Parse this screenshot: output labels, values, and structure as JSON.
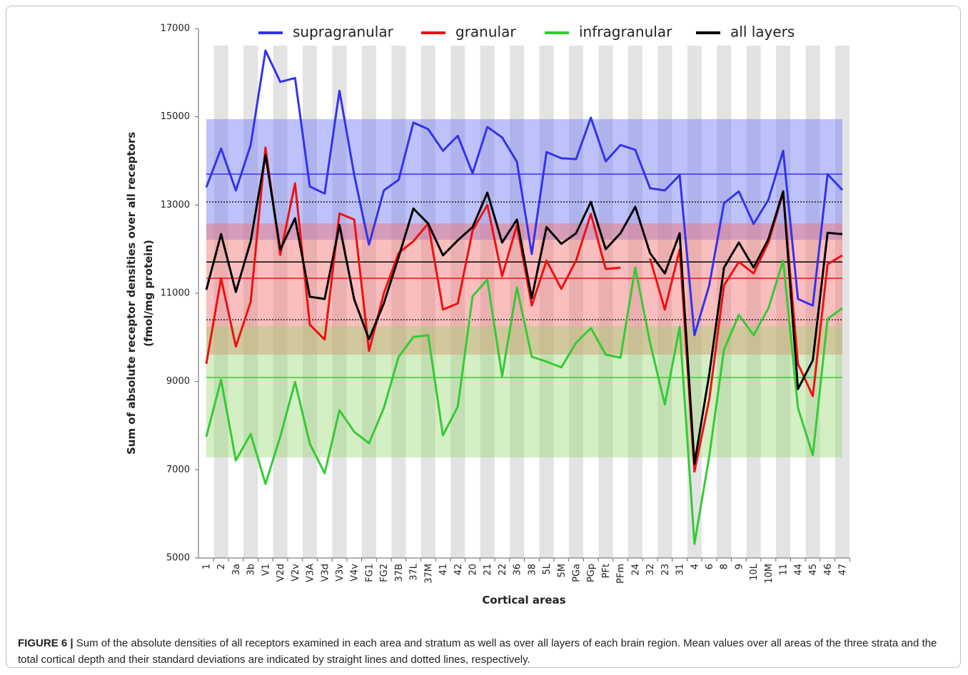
{
  "chart_data": {
    "type": "line",
    "ylabel_lines": [
      "Sum of absolute receptor densities over all receptors",
      "(fmol/mg protein)"
    ],
    "xlabel": "Cortical areas",
    "figure_label": "FIGURE 6 |",
    "caption": "Sum of the absolute densities of all receptors examined in each area and stratum as well as over all layers of each brain region. Mean values over all areas of the three strata and the total cortical depth and their standard deviations are indicated by straight lines and dotted lines, respectively.",
    "categories": [
      "1",
      "2",
      "3a",
      "3b",
      "V1",
      "V2d",
      "V2v",
      "V3A",
      "V3d",
      "V3v",
      "V4v",
      "FG1",
      "FG2",
      "37B",
      "37L",
      "37M",
      "41",
      "42",
      "20",
      "21",
      "22",
      "36",
      "38",
      "5L",
      "5M",
      "PGa",
      "PGp",
      "PFt",
      "PFm",
      "24",
      "32",
      "23",
      "31",
      "4",
      "6",
      "8",
      "9",
      "10L",
      "10M",
      "11",
      "44",
      "45",
      "46",
      "47"
    ],
    "ylim": [
      5000,
      17000
    ],
    "yticks": [
      5000,
      7000,
      9000,
      11000,
      13000,
      15000,
      17000
    ],
    "series": [
      {
        "name": "supragranular",
        "color": "#3333ee",
        "band_color": "rgba(110,120,245,0.45)",
        "sd_style": "band",
        "mean": 13700,
        "sd_range": [
          12213,
          14946
        ],
        "values": [
          13400,
          14280,
          13330,
          14360,
          16500,
          15790,
          15880,
          13420,
          13260,
          15590,
          13680,
          12100,
          13330,
          13570,
          14870,
          14720,
          14230,
          14570,
          13720,
          14770,
          14530,
          13980,
          11890,
          14200,
          14060,
          14040,
          14980,
          13990,
          14360,
          14250,
          13380,
          13330,
          13680,
          10050,
          11180,
          13040,
          13310,
          12570,
          13120,
          14230,
          10870,
          10720,
          13700,
          13340
        ]
      },
      {
        "name": "granular",
        "color": "#ee1111",
        "band_color": "rgba(245,110,110,0.45)",
        "sd_style": "band",
        "mean": 11340,
        "sd_range": [
          9609,
          12585
        ],
        "values": [
          9400,
          11340,
          9790,
          10810,
          14300,
          11870,
          13490,
          10290,
          9950,
          12810,
          12670,
          9690,
          11000,
          11910,
          12180,
          12580,
          10630,
          10770,
          12420,
          13000,
          11390,
          12540,
          10720,
          11740,
          11100,
          11740,
          12800,
          11550,
          11580,
          null,
          11790,
          10630,
          11990,
          6960,
          8590,
          11180,
          11710,
          11450,
          12150,
          13280,
          9400,
          8670,
          11660,
          11860
        ]
      },
      {
        "name": "infragranular",
        "color": "#33cc33",
        "band_color": "rgba(150,215,110,0.4)",
        "sd_style": "band",
        "mean": 9090,
        "sd_range": [
          7280,
          10256
        ],
        "values": [
          7750,
          9040,
          7210,
          7810,
          6680,
          7750,
          8990,
          7590,
          6920,
          8350,
          7860,
          7600,
          8400,
          9560,
          10010,
          10050,
          7780,
          8430,
          10930,
          11310,
          9120,
          11130,
          9560,
          9450,
          9320,
          9880,
          10210,
          9610,
          9540,
          11580,
          9880,
          8480,
          10240,
          5320,
          7300,
          9720,
          10510,
          10050,
          10660,
          11740,
          8400,
          7330,
          10420,
          10660
        ]
      },
      {
        "name": "all layers",
        "color": "#000000",
        "sd_style": "dotted",
        "mean": 11710,
        "sd_range": [
          10400,
          13070
        ],
        "values": [
          11080,
          12340,
          11030,
          12180,
          14140,
          11990,
          12700,
          10920,
          10870,
          12550,
          10860,
          9960,
          10770,
          11820,
          12920,
          12580,
          11860,
          12200,
          12500,
          13280,
          12150,
          12670,
          10890,
          12500,
          12120,
          12360,
          13070,
          12000,
          12360,
          12960,
          11910,
          11450,
          12360,
          7130,
          9160,
          11580,
          12150,
          11580,
          12230,
          13310,
          8830,
          9480,
          12370,
          12340
        ]
      }
    ]
  }
}
